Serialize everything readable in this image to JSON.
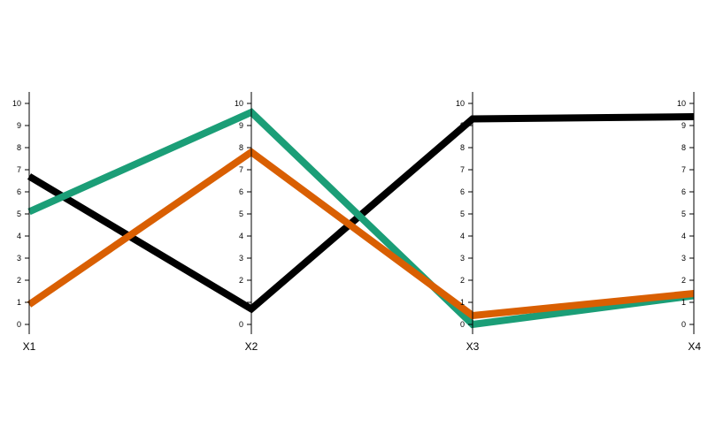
{
  "chart_data": {
    "type": "parallel-coordinates",
    "dimensions": [
      "X1",
      "X2",
      "X3",
      "X4"
    ],
    "ylim": [
      0,
      10
    ],
    "ticks": [
      0,
      1,
      2,
      3,
      4,
      5,
      6,
      7,
      8,
      9,
      10
    ],
    "grid": false,
    "legend": "none",
    "series": [
      {
        "color": "#000000",
        "values": [
          6.7,
          0.7,
          9.3,
          9.4
        ]
      },
      {
        "color": "#1b9e77",
        "values": [
          5.1,
          9.6,
          0.0,
          1.3
        ]
      },
      {
        "color": "#d95f02",
        "values": [
          0.9,
          7.8,
          0.4,
          1.4
        ]
      }
    ]
  }
}
